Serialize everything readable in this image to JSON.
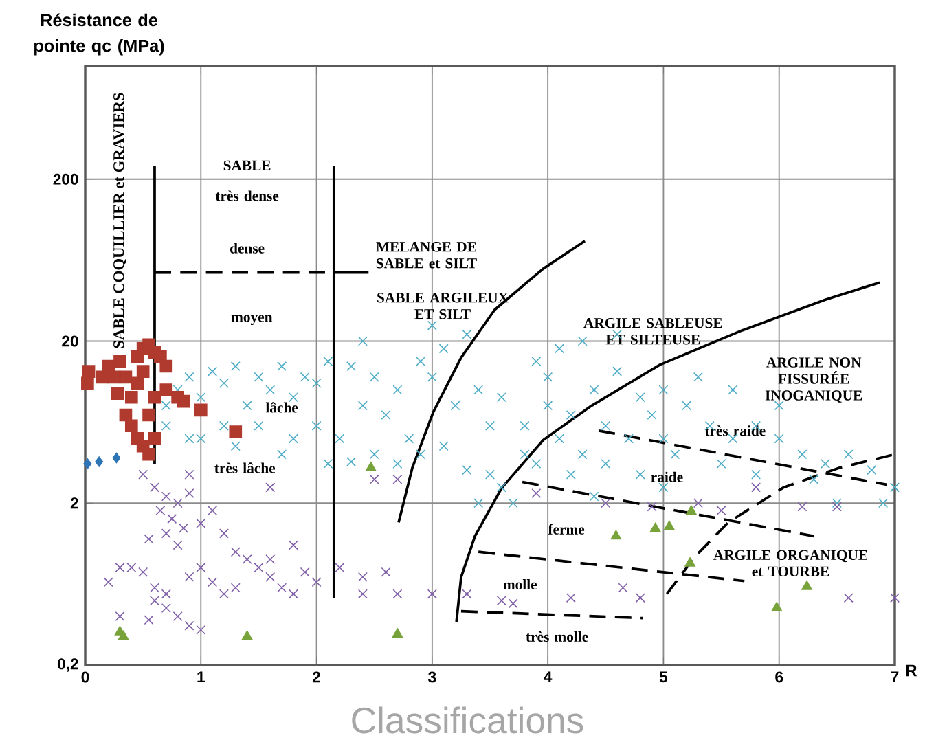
{
  "chart_data": {
    "type": "scatter",
    "log": "y",
    "grid": true,
    "xlabel": "R",
    "ylabel": "Résistance de pointe qc (MPa)",
    "xlim": [
      0,
      7
    ],
    "ylim": [
      0.2,
      1000
    ],
    "xticks": [
      0,
      1,
      2,
      3,
      4,
      5,
      6,
      7
    ],
    "yticks": [
      {
        "value": 0.2,
        "label": "0,2"
      },
      2,
      20,
      200
    ],
    "series": [
      {
        "color": "#4bacc6",
        "marker": "cross",
        "x": [
          0.7,
          0.8,
          0.9,
          1.0,
          1.1,
          1.2,
          1.3,
          1.4,
          1.5,
          1.6,
          1.7,
          1.8,
          1.9,
          2.0,
          2.1,
          1.2,
          1.5,
          1.8,
          2.0,
          1.0,
          1.3,
          1.7,
          2.1,
          0.7,
          0.9,
          2.3,
          2.5,
          2.7,
          2.9,
          3.1,
          3.3,
          3.0,
          2.4,
          2.6,
          2.8,
          2.9,
          3.2,
          3.4,
          2.5,
          2.3,
          2.7,
          3.1,
          3.3,
          3.5,
          3.6,
          2.2,
          3.0,
          2.4,
          3.5,
          3.6,
          3.4,
          3.7,
          3.8,
          3.8,
          4.0,
          4.2,
          4.1,
          4.3,
          4.5,
          4.7,
          4.9,
          4.0,
          4.4,
          4.6,
          4.8,
          3.9,
          4.1,
          4.3,
          4.6,
          5.0,
          4.2,
          4.5,
          4.8,
          5.0,
          3.9,
          4.4,
          5.2,
          5.4,
          5.6,
          5.8,
          6.0,
          6.2,
          6.4,
          6.6,
          6.8,
          7.0,
          5.3,
          5.6,
          6.0,
          5.5,
          5.8,
          6.3,
          6.5,
          6.9,
          5.1,
          5.0
        ],
        "values": [
          8,
          10,
          12,
          9,
          13,
          11,
          14,
          8,
          12,
          10,
          14,
          9,
          12,
          11,
          15,
          6,
          6,
          5,
          6,
          5,
          4.5,
          4,
          3.5,
          6,
          5,
          14,
          12,
          10,
          15,
          18,
          22,
          12,
          8,
          7,
          5,
          4,
          8,
          10,
          4,
          3.6,
          3.5,
          4.5,
          3.2,
          6,
          9,
          5,
          25,
          20,
          3,
          2.5,
          2,
          2,
          4,
          6,
          8,
          7,
          5,
          4,
          6,
          5,
          7,
          12,
          10,
          13,
          9,
          15,
          18,
          20,
          22,
          10,
          3,
          3.5,
          3,
          2.5,
          3.5,
          2.2,
          8,
          6,
          5,
          6,
          5,
          4,
          3.5,
          4,
          3.2,
          2.5,
          12,
          10,
          8,
          3.5,
          3,
          2.8,
          2,
          2,
          4,
          5
        ]
      },
      {
        "color": "#7f5fa8",
        "marker": "cross",
        "x": [
          0.6,
          0.7,
          0.8,
          0.75,
          0.85,
          0.65,
          0.9,
          0.55,
          0.7,
          0.8,
          1.0,
          1.1,
          1.2,
          1.3,
          1.4,
          0.3,
          0.4,
          0.2,
          0.5,
          0.6,
          0.7,
          0.9,
          1.0,
          1.1,
          1.2,
          1.3,
          1.6,
          1.7,
          1.8,
          1.9,
          2.0,
          1.5,
          0.3,
          0.55,
          0.8,
          0.9,
          1.0,
          0.7,
          0.6,
          1.8,
          1.6,
          2.2,
          2.4,
          2.6,
          2.4,
          2.7,
          3.0,
          3.3,
          3.6,
          3.7,
          4.2,
          4.65,
          4.8,
          6.6,
          7.0,
          4.5,
          4.9,
          5.3,
          5.5,
          5.8,
          6.2,
          6.5,
          2.5,
          2.7,
          3.9,
          0.5,
          0.9,
          1.6
        ],
        "values": [
          2.5,
          2.2,
          2.0,
          1.6,
          1.4,
          1.8,
          2.3,
          1.2,
          1.3,
          1.1,
          1.5,
          1.8,
          1.3,
          1.0,
          0.9,
          0.8,
          0.8,
          0.65,
          0.75,
          0.6,
          0.55,
          0.7,
          0.8,
          0.65,
          0.55,
          0.6,
          0.7,
          0.6,
          0.55,
          0.75,
          0.65,
          0.8,
          0.4,
          0.38,
          0.4,
          0.35,
          0.33,
          0.45,
          0.5,
          1.1,
          0.9,
          0.8,
          0.7,
          0.75,
          0.55,
          0.55,
          0.55,
          0.55,
          0.5,
          0.48,
          0.52,
          0.6,
          0.52,
          0.52,
          0.52,
          2.0,
          1.9,
          2.0,
          1.8,
          2.5,
          1.9,
          1.9,
          2.8,
          2.8,
          2.3,
          3.0,
          3.0,
          2.5
        ]
      },
      {
        "color": "#b03a2e",
        "marker": "square",
        "x": [
          0.02,
          0.03,
          0.15,
          0.2,
          0.3,
          0.35,
          0.28,
          0.45,
          0.5,
          0.55,
          0.6,
          0.65,
          0.5,
          0.45,
          0.4,
          0.35,
          0.4,
          0.45,
          0.5,
          0.55,
          0.6,
          0.55,
          0.6,
          0.7,
          0.8,
          0.85,
          1.0,
          1.3,
          0.7,
          0.25
        ],
        "values": [
          11,
          13,
          12,
          14,
          15,
          12,
          9.5,
          16,
          18,
          19,
          17,
          16,
          13,
          11,
          9,
          7,
          6,
          5,
          4.5,
          4,
          5,
          7,
          9,
          10,
          9,
          8.5,
          7.5,
          5.5,
          14,
          12
        ]
      },
      {
        "color": "#2e75b6",
        "marker": "diamond",
        "x": [
          0.02,
          0.12,
          0.27
        ],
        "values": [
          3.5,
          3.6,
          3.8
        ]
      },
      {
        "color": "#77a33a",
        "marker": "triangle",
        "x": [
          0.33,
          0.3,
          1.4,
          2.7,
          2.47,
          4.59,
          4.93,
          5.05,
          5.24,
          5.23,
          6.24,
          5.98
        ],
        "values": [
          0.3,
          0.32,
          0.3,
          0.31,
          3.3,
          1.25,
          1.39,
          1.43,
          1.78,
          0.85,
          0.61,
          0.45
        ]
      },
      {
        "type": "line",
        "color": "#000000",
        "line_style": "solid",
        "x": [
          0.6,
          0.6
        ],
        "values": [
          240,
          3.5
        ]
      },
      {
        "type": "line",
        "color": "#000000",
        "line_style": "solid",
        "x": [
          2.15,
          2.15
        ],
        "values": [
          240,
          0.52
        ]
      },
      {
        "type": "line",
        "color": "#000000",
        "line_style": "dashed",
        "x": [
          0.6,
          2.15
        ],
        "values": [
          53,
          53
        ]
      },
      {
        "type": "line",
        "color": "#000000",
        "line_style": "solid",
        "x": [
          2.15,
          2.45
        ],
        "values": [
          53,
          53
        ]
      },
      {
        "type": "line",
        "color": "#000000",
        "line_style": "solid",
        "x": [
          2.71,
          2.83,
          3.01,
          3.25,
          3.54,
          3.96,
          4.32
        ],
        "values": [
          1.52,
          3.33,
          7.3,
          15.8,
          31.2,
          56,
          83
        ]
      },
      {
        "type": "line",
        "color": "#000000",
        "line_style": "solid",
        "x": [
          3.21,
          3.25,
          3.37,
          3.6,
          3.96,
          4.38,
          4.97,
          5.68,
          6.4,
          6.87
        ],
        "values": [
          0.37,
          0.696,
          1.25,
          2.47,
          4.9,
          8.0,
          14.3,
          23.3,
          36,
          46
        ]
      },
      {
        "type": "line",
        "color": "#000000",
        "line_style": "dashed",
        "x": [
          5.03,
          5.27,
          5.56,
          6.04,
          6.52,
          7.0
        ],
        "values": [
          0.55,
          0.93,
          1.52,
          2.5,
          3.3,
          4.0
        ]
      },
      {
        "type": "line",
        "color": "#000000",
        "line_style": "dashed",
        "x": [
          4.44,
          6.93
        ],
        "values": [
          5.6,
          2.6
        ]
      },
      {
        "type": "line",
        "color": "#000000",
        "line_style": "dashed",
        "x": [
          3.78,
          6.3
        ],
        "values": [
          2.7,
          1.25
        ]
      },
      {
        "type": "line",
        "color": "#000000",
        "line_style": "dashed",
        "x": [
          3.4,
          5.7
        ],
        "values": [
          1.0,
          0.66
        ]
      },
      {
        "type": "line",
        "color": "#000000",
        "line_style": "dashed",
        "x": [
          3.25,
          4.82
        ],
        "values": [
          0.43,
          0.39
        ]
      }
    ],
    "annotations": [
      "SABLE COQUILLIER et GRAVIERS",
      "SABLE",
      "très dense",
      "dense",
      "moyen",
      "lâche",
      "très lâche",
      "MELANGE DE SABLE et SILT",
      "SABLE ARGILEUX ET SILT",
      "ARGILE SABLEUSE ET SILTEUSE",
      "ARGILE NON FISSURÉE INOGANIQUE",
      "très raide",
      "raide",
      "ferme",
      "ARGILE ORGANIQUE et TOURBE",
      "molle",
      "très molle",
      "Classifications"
    ]
  }
}
